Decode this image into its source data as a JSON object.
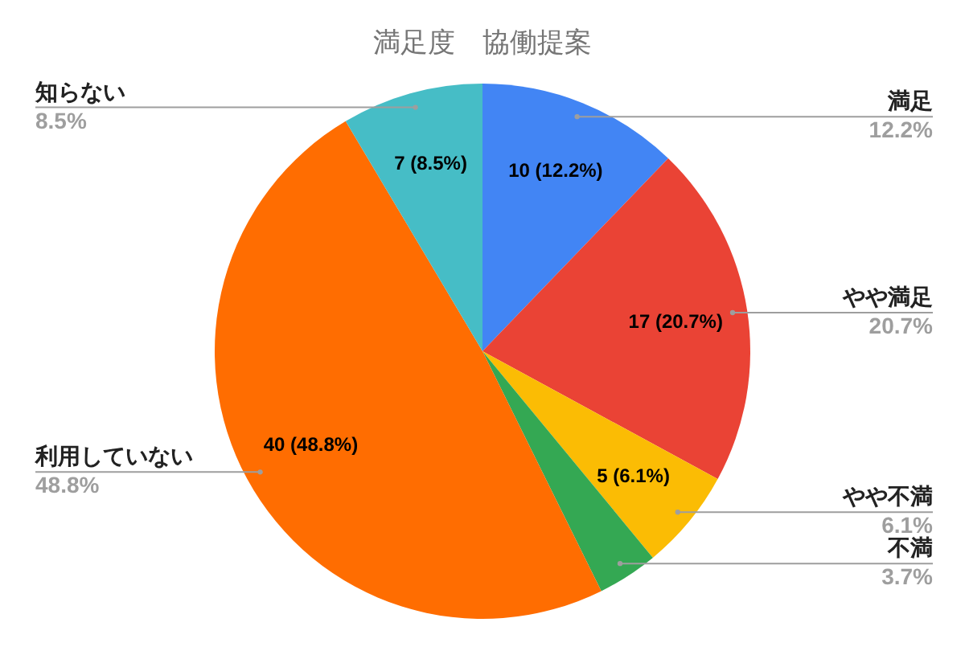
{
  "chart_data": {
    "type": "pie",
    "title": "満足度　協働提案",
    "categories": [
      "満足",
      "やや満足",
      "やや不満",
      "不満",
      "利用していない",
      "知らない"
    ],
    "values": [
      10,
      17,
      5,
      3,
      40,
      7
    ],
    "colors": [
      "#4285f4",
      "#ea4335",
      "#fbbc04",
      "#34a853",
      "#ff6d01",
      "#46bdc6"
    ],
    "value_labels": [
      "10 (12.2%)",
      "17 (20.7%)",
      "5 (6.1%)",
      null,
      "40 (48.8%)",
      "7 (8.5%)"
    ],
    "annotations": [
      "12.2%",
      "20.7%",
      "6.1%",
      "3.7%",
      "48.8%",
      "8.5%"
    ]
  }
}
